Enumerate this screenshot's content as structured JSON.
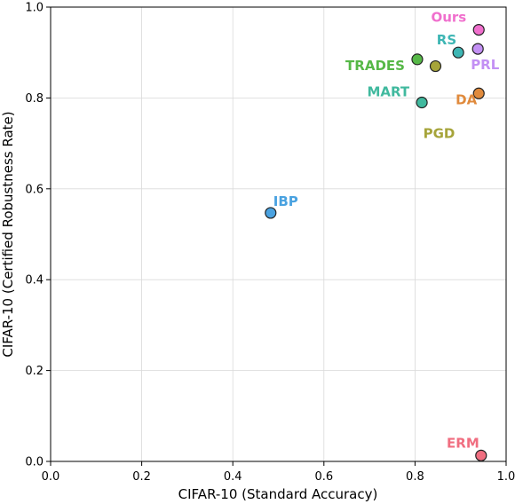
{
  "chart_data": {
    "type": "scatter",
    "xlabel": "CIFAR-10 (Standard Accuracy)",
    "ylabel": "CIFAR-10 (Certified Robustness Rate)",
    "xlim": [
      0,
      1
    ],
    "ylim": [
      0,
      1
    ],
    "x_ticks": [
      "0.0",
      "0.2",
      "0.4",
      "0.6",
      "0.8",
      "1.0"
    ],
    "y_ticks": [
      "0.0",
      "0.2",
      "0.4",
      "0.6",
      "0.8",
      "1.0"
    ],
    "grid": true,
    "points": [
      {
        "name": "Ours",
        "x": 0.94,
        "y": 0.95,
        "color": "#f06fcd"
      },
      {
        "name": "RS",
        "x": 0.895,
        "y": 0.9,
        "color": "#3eb6b4"
      },
      {
        "name": "PRL",
        "x": 0.938,
        "y": 0.908,
        "color": "#c390f4"
      },
      {
        "name": "TRADES",
        "x": 0.805,
        "y": 0.885,
        "color": "#56b847"
      },
      {
        "name": "PGD",
        "x": 0.845,
        "y": 0.87,
        "color": "#a6a43a"
      },
      {
        "name": "DA",
        "x": 0.94,
        "y": 0.81,
        "color": "#e08a3c"
      },
      {
        "name": "MART",
        "x": 0.815,
        "y": 0.79,
        "color": "#40b99e"
      },
      {
        "name": "IBP",
        "x": 0.483,
        "y": 0.547,
        "color": "#4aa2e0"
      },
      {
        "name": "ERM",
        "x": 0.945,
        "y": 0.013,
        "color": "#f06e80"
      }
    ]
  }
}
